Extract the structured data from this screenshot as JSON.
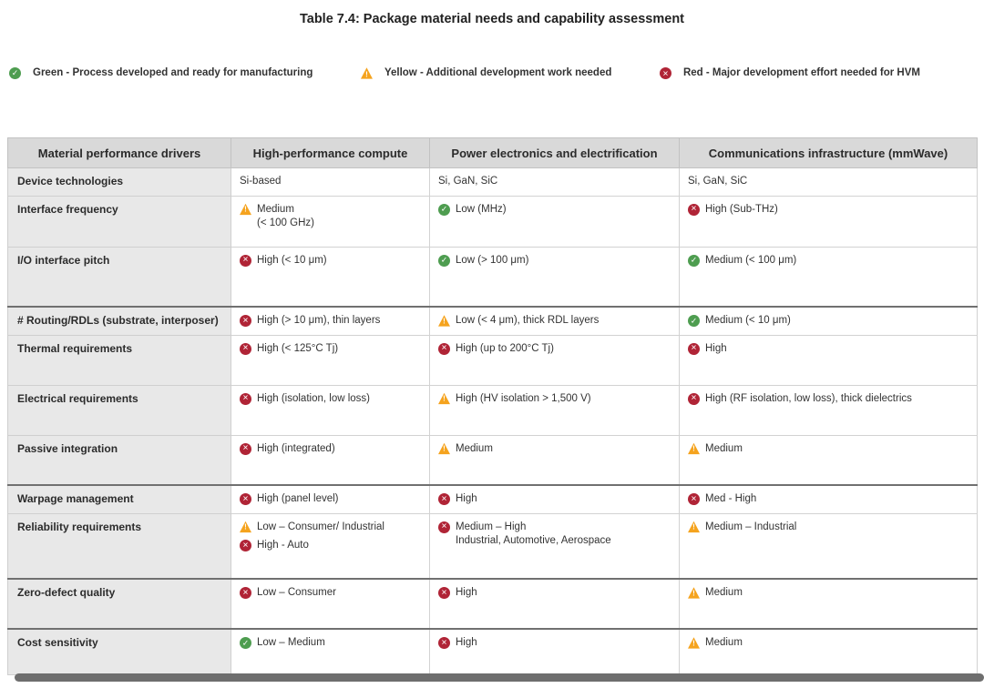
{
  "title": "Table 7.4: Package material needs and capability assessment",
  "colors": {
    "green": "#4e9d50",
    "yellow": "#f5a31e",
    "red": "#b02436"
  },
  "legend": [
    {
      "status": "green",
      "label": "Green - Process developed and ready for manufacturing"
    },
    {
      "status": "yellow",
      "label": "Yellow - Additional development work needed"
    },
    {
      "status": "red",
      "label": "Red - Major development effort needed for HVM"
    }
  ],
  "table": {
    "columns": [
      "Material performance drivers",
      "High-performance compute",
      "Power electronics and electrification",
      "Communications infrastructure (mmWave)"
    ],
    "rows": [
      {
        "driver": "Device technologies",
        "cells": [
          [
            {
              "status": null,
              "lines": [
                "Si-based"
              ]
            }
          ],
          [
            {
              "status": null,
              "lines": [
                "Si, GaN, SiC"
              ]
            }
          ],
          [
            {
              "status": null,
              "lines": [
                "Si, GaN, SiC"
              ]
            }
          ]
        ]
      },
      {
        "driver": "Interface frequency",
        "cells": [
          [
            {
              "status": "yellow",
              "lines": [
                "Medium",
                "(< 100 GHz)"
              ]
            }
          ],
          [
            {
              "status": "green",
              "lines": [
                "Low (MHz)"
              ]
            }
          ],
          [
            {
              "status": "red",
              "lines": [
                "High (Sub-THz)"
              ]
            }
          ]
        ]
      },
      {
        "driver": "I/O interface pitch",
        "cells": [
          [
            {
              "status": "red",
              "lines": [
                "High (< 10 μm)"
              ]
            }
          ],
          [
            {
              "status": "green",
              "lines": [
                "Low (> 100 μm)"
              ]
            }
          ],
          [
            {
              "status": "green",
              "lines": [
                "Medium (< 100 μm)"
              ]
            }
          ]
        ]
      },
      {
        "driver": "# Routing/RDLs (substrate, interposer)",
        "cells": [
          [
            {
              "status": "red",
              "lines": [
                "High (> 10 μm), thin layers"
              ]
            }
          ],
          [
            {
              "status": "yellow",
              "lines": [
                "Low (< 4 μm), thick RDL layers"
              ]
            }
          ],
          [
            {
              "status": "green",
              "lines": [
                "Medium (< 10 μm)"
              ]
            }
          ]
        ]
      },
      {
        "driver": "Thermal requirements",
        "cells": [
          [
            {
              "status": "red",
              "lines": [
                "High (< 125°C Tj)"
              ]
            }
          ],
          [
            {
              "status": "red",
              "lines": [
                "High (up to 200°C Tj)"
              ]
            }
          ],
          [
            {
              "status": "red",
              "lines": [
                "High"
              ]
            }
          ]
        ]
      },
      {
        "driver": "Electrical requirements",
        "cells": [
          [
            {
              "status": "red",
              "lines": [
                "High (isolation, low loss)"
              ]
            }
          ],
          [
            {
              "status": "yellow",
              "lines": [
                "High (HV isolation > 1,500 V)"
              ]
            }
          ],
          [
            {
              "status": "red",
              "lines": [
                "High (RF isolation, low loss), thick dielectrics"
              ]
            }
          ]
        ]
      },
      {
        "driver": "Passive integration",
        "cells": [
          [
            {
              "status": "red",
              "lines": [
                "High (integrated)"
              ]
            }
          ],
          [
            {
              "status": "yellow",
              "lines": [
                "Medium"
              ]
            }
          ],
          [
            {
              "status": "yellow",
              "lines": [
                "Medium"
              ]
            }
          ]
        ]
      },
      {
        "driver": "Warpage management",
        "cells": [
          [
            {
              "status": "red",
              "lines": [
                "High (panel level)"
              ]
            }
          ],
          [
            {
              "status": "red",
              "lines": [
                "High"
              ]
            }
          ],
          [
            {
              "status": "red",
              "lines": [
                "Med - High"
              ]
            }
          ]
        ]
      },
      {
        "driver": "Reliability requirements",
        "cells": [
          [
            {
              "status": "yellow",
              "lines": [
                "Low – Consumer/ Industrial"
              ]
            },
            {
              "status": "red",
              "lines": [
                "High - Auto"
              ]
            }
          ],
          [
            {
              "status": "red",
              "lines": [
                "Medium – High",
                "Industrial, Automotive, Aerospace"
              ]
            }
          ],
          [
            {
              "status": "yellow",
              "lines": [
                "Medium – Industrial"
              ]
            }
          ]
        ]
      },
      {
        "driver": "Zero-defect quality",
        "cells": [
          [
            {
              "status": "red",
              "lines": [
                "Low – Consumer"
              ]
            }
          ],
          [
            {
              "status": "red",
              "lines": [
                "High"
              ]
            }
          ],
          [
            {
              "status": "yellow",
              "lines": [
                "Medium"
              ]
            }
          ]
        ]
      },
      {
        "driver": "Cost sensitivity",
        "cells": [
          [
            {
              "status": "green",
              "lines": [
                "Low – Medium"
              ]
            }
          ],
          [
            {
              "status": "red",
              "lines": [
                "High"
              ]
            }
          ],
          [
            {
              "status": "yellow",
              "lines": [
                "Medium"
              ]
            }
          ]
        ]
      }
    ]
  }
}
